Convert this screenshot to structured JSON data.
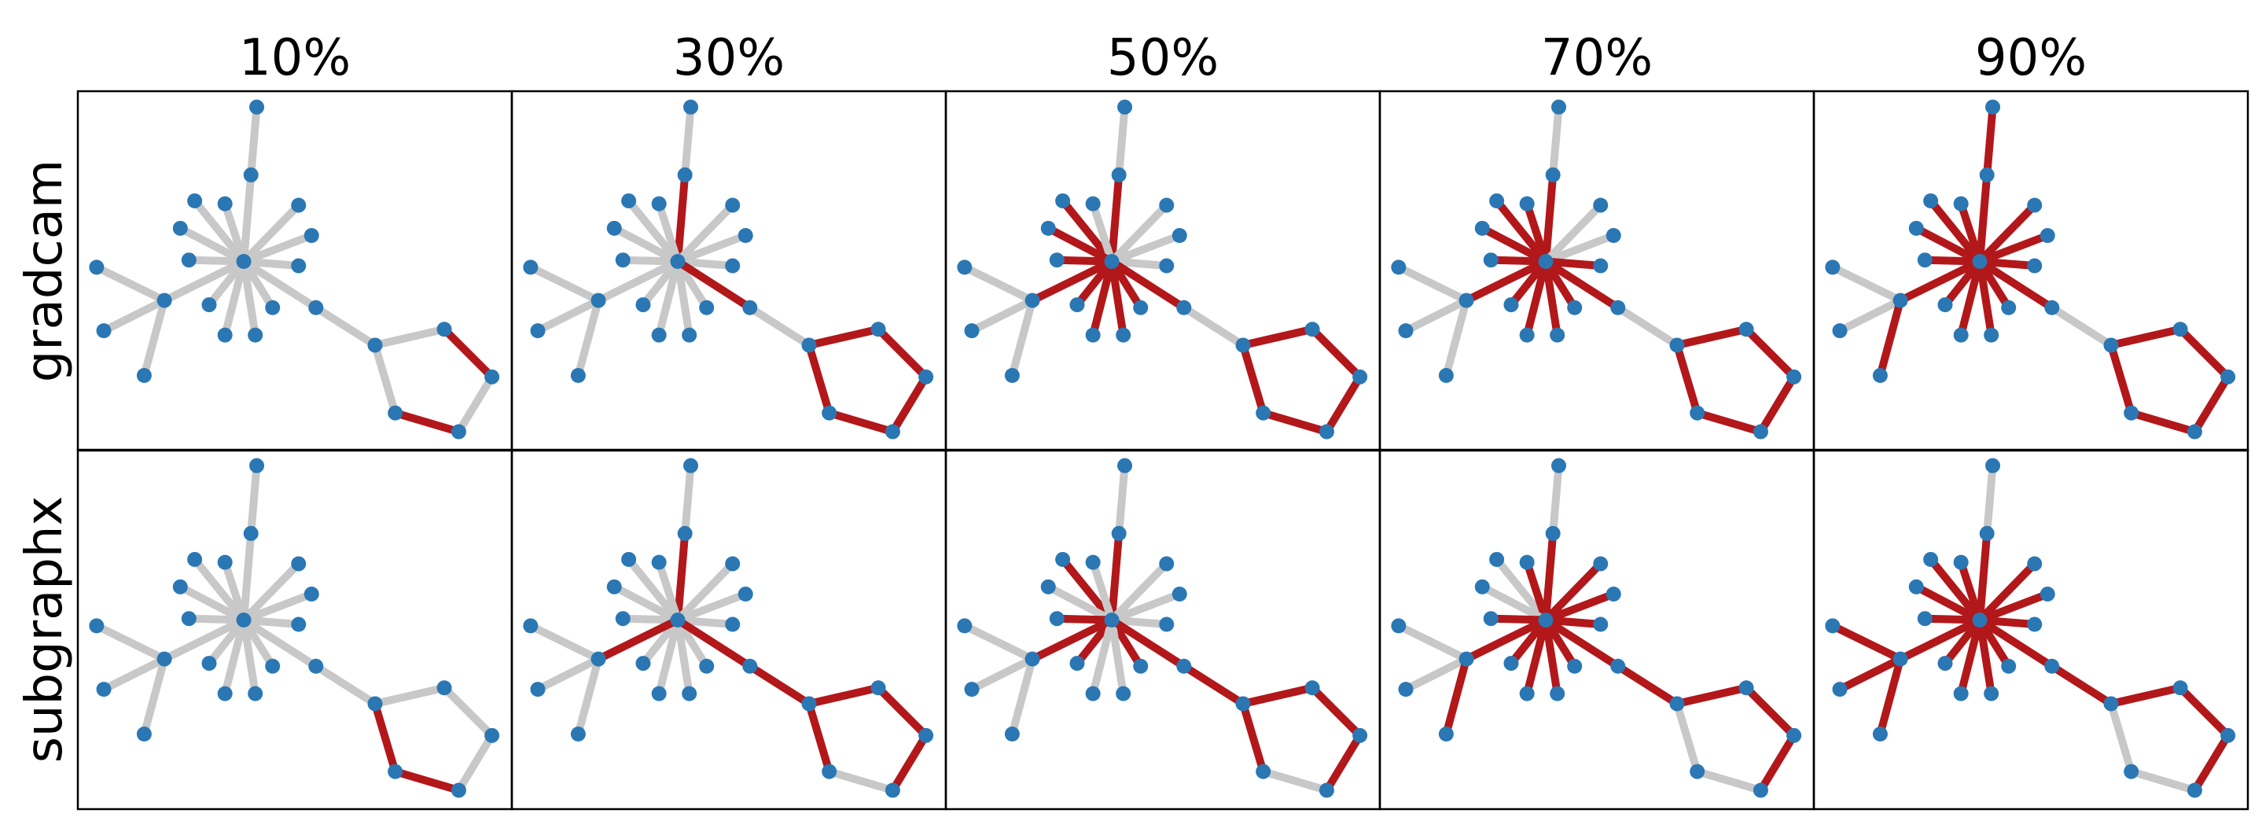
{
  "columns": [
    "10%",
    "30%",
    "50%",
    "70%",
    "90%"
  ],
  "rows": [
    {
      "label": "gradcam",
      "panels": [
        [
          20,
          22
        ],
        [
          0,
          12,
          19,
          20,
          21,
          22,
          23
        ],
        [
          0,
          1,
          3,
          6,
          8,
          9,
          10,
          11,
          12,
          13,
          19,
          20,
          21,
          22,
          23
        ],
        [
          0,
          1,
          2,
          3,
          6,
          7,
          8,
          9,
          10,
          11,
          12,
          13,
          19,
          20,
          21,
          22,
          23
        ],
        [
          0,
          1,
          2,
          3,
          4,
          5,
          6,
          7,
          8,
          9,
          10,
          11,
          12,
          13,
          14,
          17,
          19,
          20,
          21,
          22,
          23
        ]
      ]
    },
    {
      "label": "subgraphx",
      "panels": [
        [
          22,
          23
        ],
        [
          0,
          12,
          13,
          18,
          19,
          20,
          21,
          23
        ],
        [
          0,
          1,
          6,
          8,
          9,
          12,
          13,
          18,
          19,
          20,
          21,
          23
        ],
        [
          0,
          2,
          4,
          5,
          6,
          7,
          8,
          9,
          10,
          11,
          12,
          13,
          17,
          18,
          19,
          20,
          21
        ],
        [
          0,
          1,
          2,
          3,
          4,
          5,
          6,
          7,
          8,
          9,
          10,
          11,
          12,
          13,
          15,
          16,
          17,
          18,
          19,
          20,
          21
        ]
      ]
    }
  ],
  "edges": [
    [
      0,
      2
    ],
    [
      0,
      3
    ],
    [
      0,
      4
    ],
    [
      0,
      5
    ],
    [
      0,
      6
    ],
    [
      0,
      7
    ],
    [
      0,
      8
    ],
    [
      0,
      9
    ],
    [
      0,
      10
    ],
    [
      0,
      11
    ],
    [
      0,
      12
    ],
    [
      0,
      13
    ],
    [
      0,
      14
    ],
    [
      0,
      15
    ],
    [
      2,
      1
    ],
    [
      15,
      16
    ],
    [
      15,
      17
    ],
    [
      15,
      18
    ],
    [
      14,
      19
    ],
    [
      19,
      20
    ],
    [
      20,
      21
    ],
    [
      21,
      22
    ],
    [
      22,
      23
    ],
    [
      23,
      19
    ]
  ]
}
